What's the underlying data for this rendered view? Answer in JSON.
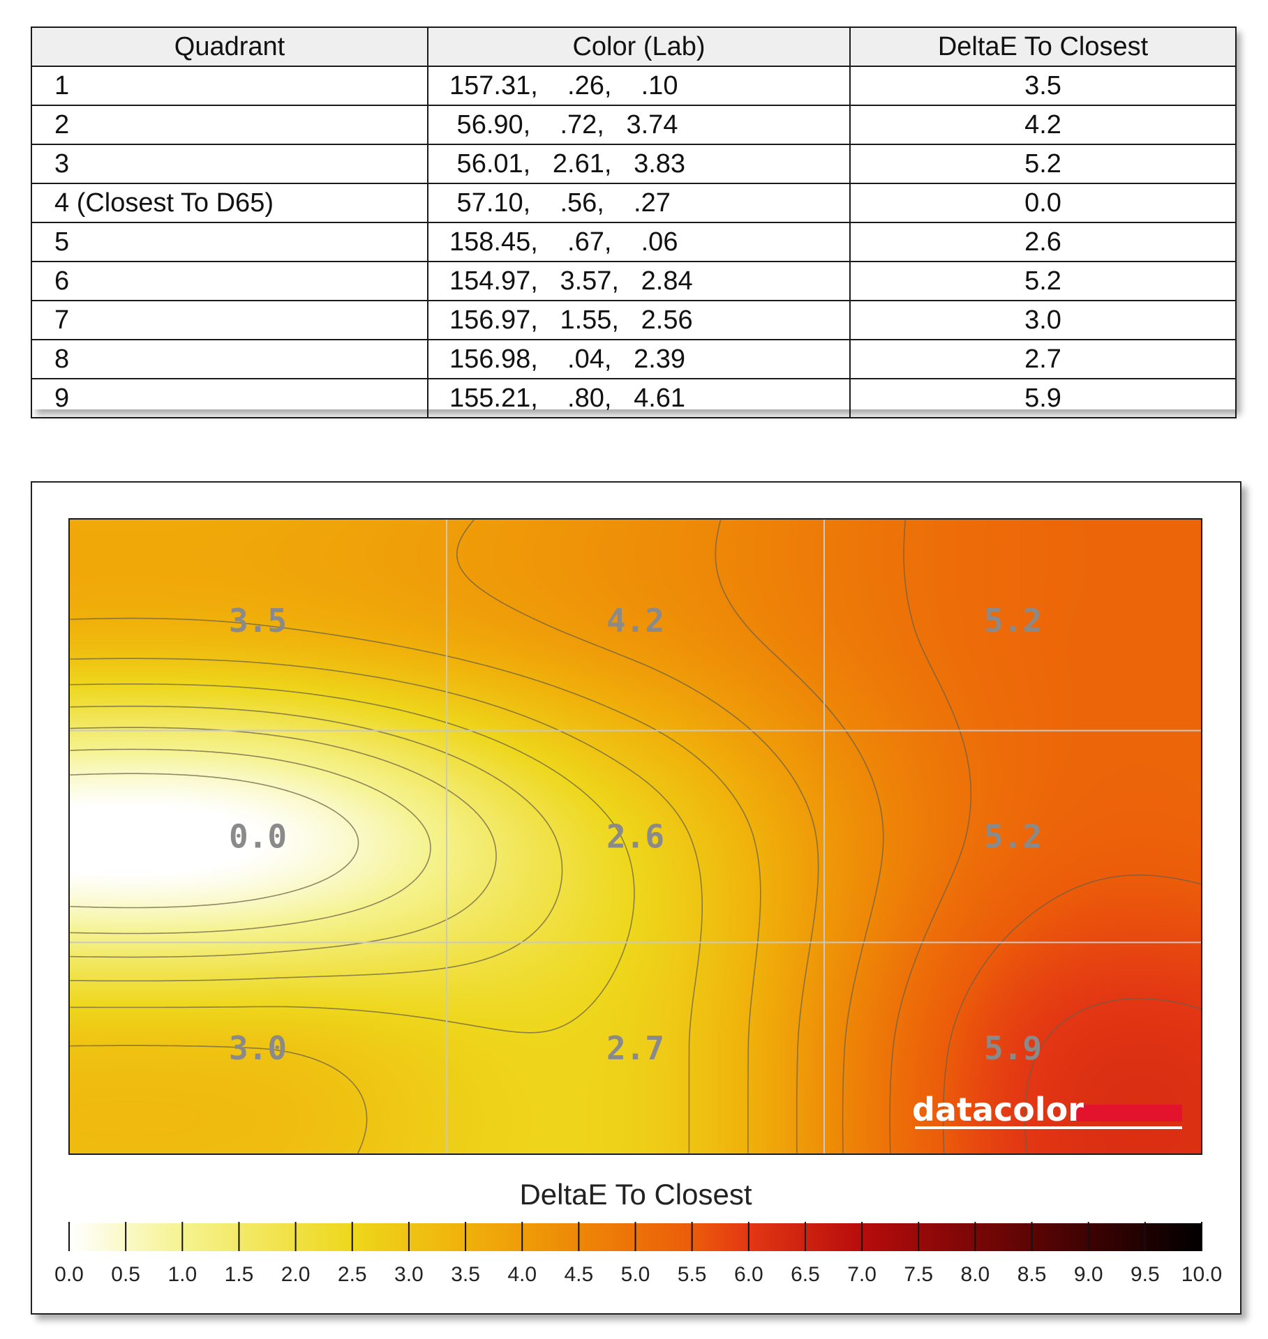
{
  "table": {
    "headers": [
      "Quadrant",
      "Color (Lab)",
      "DeltaE To Closest"
    ],
    "rows": [
      {
        "quadrant": "1",
        "lab": "157.31,    .26,    .10",
        "delta": "3.5"
      },
      {
        "quadrant": "2",
        "lab": " 56.90,    .72,   3.74",
        "delta": "4.2"
      },
      {
        "quadrant": "3",
        "lab": " 56.01,   2.61,   3.83",
        "delta": "5.2"
      },
      {
        "quadrant": "4 (Closest To D65)",
        "lab": " 57.10,    .56,    .27",
        "delta": "0.0"
      },
      {
        "quadrant": "5",
        "lab": "158.45,    .67,    .06",
        "delta": "2.6"
      },
      {
        "quadrant": "6",
        "lab": "154.97,   3.57,   2.84",
        "delta": "5.2"
      },
      {
        "quadrant": "7",
        "lab": "156.97,   1.55,   2.56",
        "delta": "3.0"
      },
      {
        "quadrant": "8",
        "lab": "156.98,    .04,   2.39",
        "delta": "2.7"
      },
      {
        "quadrant": "9",
        "lab": "155.21,    .80,   4.61",
        "delta": "5.9"
      }
    ]
  },
  "chart_data": {
    "type": "heatmap",
    "title": "DeltaE To Closest",
    "grid": true,
    "values": [
      [
        3.5,
        4.2,
        5.2
      ],
      [
        0.0,
        2.6,
        5.2
      ],
      [
        3.0,
        2.7,
        5.9
      ]
    ],
    "value_labels": [
      [
        "3.5",
        "4.2",
        "5.2"
      ],
      [
        "0.0",
        "2.6",
        "5.2"
      ],
      [
        "3.0",
        "2.7",
        "5.9"
      ]
    ],
    "color_scale": {
      "min": 0,
      "max": 10,
      "ticks": [
        "0.0",
        "0.5",
        "1.0",
        "1.5",
        "2.0",
        "2.5",
        "3.0",
        "3.5",
        "4.0",
        "4.5",
        "5.0",
        "5.5",
        "6.0",
        "6.5",
        "7.0",
        "7.5",
        "8.0",
        "8.5",
        "9.0",
        "9.5",
        "10.0"
      ],
      "stops": [
        {
          "v": 0.0,
          "c": "#ffffff"
        },
        {
          "v": 1.0,
          "c": "#f5f38f"
        },
        {
          "v": 2.5,
          "c": "#eed71c"
        },
        {
          "v": 3.5,
          "c": "#f0b10a"
        },
        {
          "v": 4.5,
          "c": "#ee8707"
        },
        {
          "v": 5.5,
          "c": "#ec5c0a"
        },
        {
          "v": 6.0,
          "c": "#e33714"
        },
        {
          "v": 7.0,
          "c": "#b70c0c"
        },
        {
          "v": 8.5,
          "c": "#5c0404"
        },
        {
          "v": 10.0,
          "c": "#000000"
        }
      ]
    }
  },
  "brand": {
    "text": "datacolor",
    "accent": "#e3132e"
  }
}
